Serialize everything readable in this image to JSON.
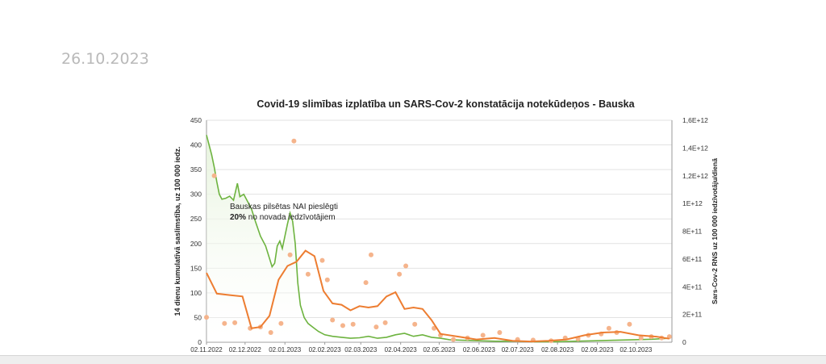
{
  "page": {
    "date": "26.10.2023"
  },
  "chart_data": {
    "type": "line",
    "title": "Covid-19 slimības izplatība un SARS-Cov-2 konstatācija notekūdeņos - Bauska",
    "ylabel": "14 dienu kumulatīvā saslimstība, uz 100 000 iedz.",
    "y2label": "Sars-Cov-2 RNS uz 100 000 iedzīvotāju/dienā",
    "ylim": [
      0,
      450
    ],
    "y2lim": [
      0,
      1600000000000.0
    ],
    "yticks": [
      "0",
      "50",
      "100",
      "150",
      "200",
      "250",
      "300",
      "350",
      "400",
      "450"
    ],
    "y2ticks": [
      "0",
      "2E+11",
      "4E+11",
      "6E+11",
      "8E+11",
      "1E+12",
      "1,2E+12",
      "1,4E+12",
      "1,6E+12"
    ],
    "xlim": [
      "2022-11-02",
      "2023-10-30"
    ],
    "xticks": [
      "02.11.2022",
      "02.12.2022",
      "02.01.2023",
      "02.02.2023",
      "02.03.2023",
      "02.04.2023",
      "02.05.2023",
      "02.06.2023",
      "02.07.2023",
      "02.08.2023",
      "02.09.2023",
      "02.10.2023"
    ],
    "grid": true,
    "annotation": {
      "line1": "Bauskas pilsētas NAI pieslēgti",
      "line2_bold": "20%",
      "line2_rest": " no novada iedzīvotājiem"
    },
    "colors": {
      "incidence": "#6db33f",
      "incidence_fill": "#e6f3dc",
      "rna_points": "#f5b48c",
      "rna_trend": "#ed7d31"
    },
    "series": [
      {
        "axis": "left",
        "style": "area-line",
        "points": [
          [
            "2022-11-02",
            420
          ],
          [
            "2022-11-04",
            400
          ],
          [
            "2022-11-06",
            380
          ],
          [
            "2022-11-08",
            355
          ],
          [
            "2022-11-10",
            325
          ],
          [
            "2022-11-12",
            300
          ],
          [
            "2022-11-14",
            290
          ],
          [
            "2022-11-17",
            292
          ],
          [
            "2022-11-20",
            296
          ],
          [
            "2022-11-23",
            288
          ],
          [
            "2022-11-26",
            322
          ],
          [
            "2022-11-28",
            295
          ],
          [
            "2022-12-01",
            300
          ],
          [
            "2022-12-04",
            285
          ],
          [
            "2022-12-07",
            270
          ],
          [
            "2022-12-10",
            245
          ],
          [
            "2022-12-14",
            215
          ],
          [
            "2022-12-18",
            195
          ],
          [
            "2022-12-21",
            170
          ],
          [
            "2022-12-23",
            153
          ],
          [
            "2022-12-25",
            160
          ],
          [
            "2022-12-27",
            195
          ],
          [
            "2022-12-29",
            205
          ],
          [
            "2022-12-31",
            190
          ],
          [
            "2023-01-02",
            215
          ],
          [
            "2023-01-04",
            240
          ],
          [
            "2023-01-06",
            262
          ],
          [
            "2023-01-08",
            245
          ],
          [
            "2023-01-10",
            200
          ],
          [
            "2023-01-12",
            120
          ],
          [
            "2023-01-14",
            75
          ],
          [
            "2023-01-17",
            50
          ],
          [
            "2023-01-20",
            38
          ],
          [
            "2023-01-24",
            30
          ],
          [
            "2023-01-28",
            22
          ],
          [
            "2023-02-02",
            15
          ],
          [
            "2023-02-08",
            12
          ],
          [
            "2023-02-15",
            10
          ],
          [
            "2023-02-22",
            8
          ],
          [
            "2023-03-01",
            9
          ],
          [
            "2023-03-08",
            12
          ],
          [
            "2023-03-15",
            8
          ],
          [
            "2023-03-22",
            10
          ],
          [
            "2023-03-29",
            15
          ],
          [
            "2023-04-05",
            18
          ],
          [
            "2023-04-12",
            12
          ],
          [
            "2023-04-19",
            15
          ],
          [
            "2023-04-26",
            10
          ],
          [
            "2023-05-03",
            8
          ],
          [
            "2023-05-10",
            5
          ],
          [
            "2023-05-20",
            4
          ],
          [
            "2023-06-01",
            3
          ],
          [
            "2023-06-15",
            2
          ],
          [
            "2023-07-01",
            2
          ],
          [
            "2023-07-15",
            1
          ],
          [
            "2023-08-01",
            1
          ],
          [
            "2023-08-15",
            2
          ],
          [
            "2023-09-01",
            3
          ],
          [
            "2023-09-15",
            4
          ],
          [
            "2023-10-01",
            5
          ],
          [
            "2023-10-15",
            6
          ],
          [
            "2023-10-28",
            8
          ]
        ]
      },
      {
        "axis": "right",
        "style": "line",
        "points": [
          [
            "2022-11-02",
            500000000000.0
          ],
          [
            "2022-11-10",
            350000000000.0
          ],
          [
            "2022-11-20",
            340000000000.0
          ],
          [
            "2022-11-30",
            330000000000.0
          ],
          [
            "2022-12-07",
            100000000000.0
          ],
          [
            "2022-12-14",
            110000000000.0
          ],
          [
            "2022-12-21",
            190000000000.0
          ],
          [
            "2022-12-28",
            450000000000.0
          ],
          [
            "2023-01-04",
            550000000000.0
          ],
          [
            "2023-01-11",
            580000000000.0
          ],
          [
            "2023-01-18",
            660000000000.0
          ],
          [
            "2023-01-25",
            620000000000.0
          ],
          [
            "2023-02-01",
            370000000000.0
          ],
          [
            "2023-02-08",
            280000000000.0
          ],
          [
            "2023-02-15",
            270000000000.0
          ],
          [
            "2023-02-22",
            230000000000.0
          ],
          [
            "2023-03-01",
            260000000000.0
          ],
          [
            "2023-03-08",
            250000000000.0
          ],
          [
            "2023-03-15",
            260000000000.0
          ],
          [
            "2023-03-22",
            330000000000.0
          ],
          [
            "2023-03-29",
            360000000000.0
          ],
          [
            "2023-04-05",
            240000000000.0
          ],
          [
            "2023-04-12",
            250000000000.0
          ],
          [
            "2023-04-19",
            240000000000.0
          ],
          [
            "2023-04-26",
            160000000000.0
          ],
          [
            "2023-05-03",
            60000000000.0
          ],
          [
            "2023-05-17",
            40000000000.0
          ],
          [
            "2023-05-31",
            20000000000.0
          ],
          [
            "2023-06-14",
            30000000000.0
          ],
          [
            "2023-06-28",
            10000000000.0
          ],
          [
            "2023-07-12",
            5000000000.0
          ],
          [
            "2023-07-26",
            10000000000.0
          ],
          [
            "2023-08-09",
            20000000000.0
          ],
          [
            "2023-08-23",
            50000000000.0
          ],
          [
            "2023-09-06",
            70000000000.0
          ],
          [
            "2023-09-20",
            75000000000.0
          ],
          [
            "2023-10-04",
            50000000000.0
          ],
          [
            "2023-10-18",
            40000000000.0
          ],
          [
            "2023-10-28",
            25000000000.0
          ]
        ]
      },
      {
        "axis": "right",
        "style": "scatter",
        "points": [
          [
            "2022-11-02",
            180000000000.0
          ],
          [
            "2022-11-08",
            1200000000000.0
          ],
          [
            "2022-11-16",
            135000000000.0
          ],
          [
            "2022-11-24",
            140000000000.0
          ],
          [
            "2022-12-06",
            100000000000.0
          ],
          [
            "2022-12-14",
            110000000000.0
          ],
          [
            "2022-12-22",
            70000000000.0
          ],
          [
            "2022-12-30",
            135000000000.0
          ],
          [
            "2023-01-06",
            630000000000.0
          ],
          [
            "2023-01-09",
            1450000000000.0
          ],
          [
            "2023-01-20",
            490000000000.0
          ],
          [
            "2023-01-31",
            590000000000.0
          ],
          [
            "2023-02-04",
            450000000000.0
          ],
          [
            "2023-02-08",
            160000000000.0
          ],
          [
            "2023-02-16",
            120000000000.0
          ],
          [
            "2023-02-24",
            130000000000.0
          ],
          [
            "2023-03-06",
            430000000000.0
          ],
          [
            "2023-03-10",
            630000000000.0
          ],
          [
            "2023-03-14",
            110000000000.0
          ],
          [
            "2023-03-21",
            140000000000.0
          ],
          [
            "2023-04-01",
            490000000000.0
          ],
          [
            "2023-04-06",
            550000000000.0
          ],
          [
            "2023-04-13",
            130000000000.0
          ],
          [
            "2023-04-28",
            100000000000.0
          ],
          [
            "2023-05-03",
            50000000000.0
          ],
          [
            "2023-05-13",
            20000000000.0
          ],
          [
            "2023-05-24",
            30000000000.0
          ],
          [
            "2023-06-05",
            50000000000.0
          ],
          [
            "2023-06-18",
            70000000000.0
          ],
          [
            "2023-07-02",
            20000000000.0
          ],
          [
            "2023-07-14",
            15000000000.0
          ],
          [
            "2023-07-28",
            10000000000.0
          ],
          [
            "2023-08-08",
            30000000000.0
          ],
          [
            "2023-08-18",
            25000000000.0
          ],
          [
            "2023-08-26",
            50000000000.0
          ],
          [
            "2023-09-05",
            60000000000.0
          ],
          [
            "2023-09-11",
            100000000000.0
          ],
          [
            "2023-09-17",
            70000000000.0
          ],
          [
            "2023-09-27",
            130000000000.0
          ],
          [
            "2023-10-06",
            30000000000.0
          ],
          [
            "2023-10-14",
            40000000000.0
          ],
          [
            "2023-10-22",
            30000000000.0
          ],
          [
            "2023-10-28",
            40000000000.0
          ]
        ]
      }
    ]
  }
}
